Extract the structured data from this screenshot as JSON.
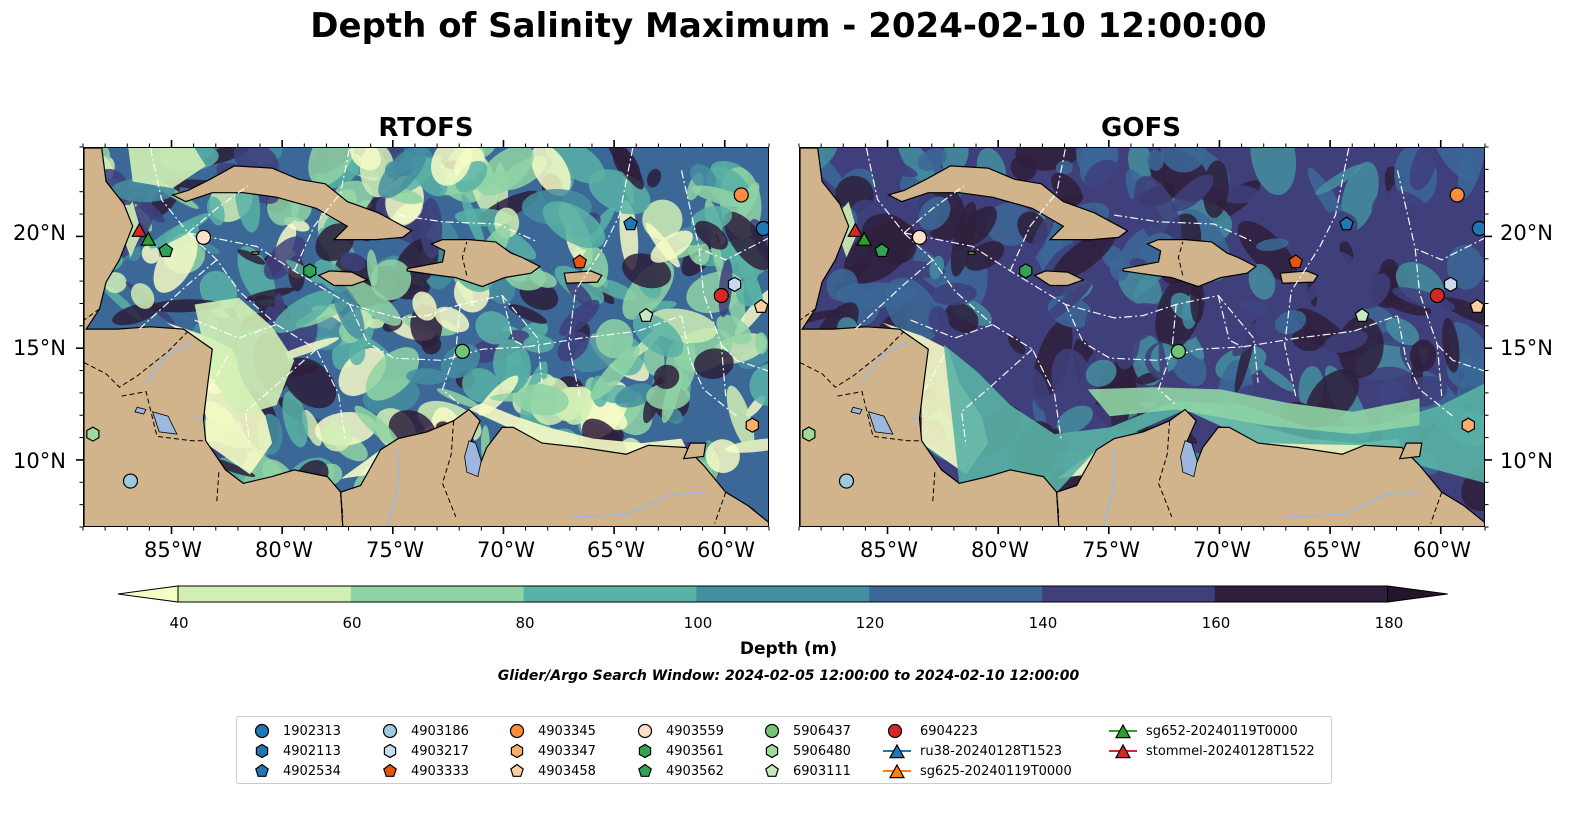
{
  "figure": {
    "title": "Depth of Salinity Maximum - 2024-02-10 12:00:00",
    "panels": [
      {
        "title": "RTOFS",
        "lat_labels": [
          "20°N",
          "15°N",
          "10°N"
        ],
        "lon_labels": [
          "85°W",
          "80°W",
          "75°W",
          "70°W",
          "65°W",
          "60°W"
        ]
      },
      {
        "title": "GOFS",
        "lat_labels": [
          "20°N",
          "15°N",
          "10°N"
        ],
        "lon_labels": [
          "85°W",
          "80°W",
          "75°W",
          "70°W",
          "65°W",
          "60°W"
        ]
      }
    ],
    "map_extent": {
      "lon": [
        -89,
        -58
      ],
      "lat": [
        7,
        24
      ]
    },
    "land_color": "#d2b48c",
    "lake_color": "#9cb8de"
  },
  "colorbar": {
    "label": "Depth (m)",
    "ticks": [
      "40",
      "60",
      "80",
      "100",
      "120",
      "140",
      "160",
      "180"
    ],
    "colors": [
      "#f7fcc5",
      "#d1efb5",
      "#8fd4a4",
      "#59b2a6",
      "#458ea0",
      "#3b6897",
      "#3e3f7b",
      "#2e1e3b",
      "#24152a"
    ],
    "extend": "both"
  },
  "search_window": "Glider/Argo Search Window: 2024-02-05 12:00:00 to 2024-02-10 12:00:00",
  "legend": {
    "columns": [
      [
        {
          "label": "1902313",
          "marker": "circle",
          "color": "#1f77b4"
        },
        {
          "label": "4902113",
          "marker": "hexagon",
          "color": "#1f77b4"
        },
        {
          "label": "4902534",
          "marker": "pentagon",
          "color": "#1f77b4"
        }
      ],
      [
        {
          "label": "4903186",
          "marker": "circle",
          "color": "#9ecae1"
        },
        {
          "label": "4903217",
          "marker": "hexagon",
          "color": "#c6dbef"
        },
        {
          "label": "4903333",
          "marker": "pentagon",
          "color": "#e6550d"
        }
      ],
      [
        {
          "label": "4903345",
          "marker": "circle",
          "color": "#fd8d3c"
        },
        {
          "label": "4903347",
          "marker": "hexagon",
          "color": "#fdae6b"
        },
        {
          "label": "4903458",
          "marker": "pentagon",
          "color": "#fdd0a2"
        }
      ],
      [
        {
          "label": "4903559",
          "marker": "circle",
          "color": "#fde0c5"
        },
        {
          "label": "4903561",
          "marker": "hexagon",
          "color": "#31a354"
        },
        {
          "label": "4903562",
          "marker": "pentagon",
          "color": "#31a354"
        }
      ],
      [
        {
          "label": "5906437",
          "marker": "circle",
          "color": "#74c476"
        },
        {
          "label": "5906480",
          "marker": "hexagon",
          "color": "#a1d99b"
        },
        {
          "label": "6903111",
          "marker": "pentagon",
          "color": "#c7e9c0"
        }
      ],
      [
        {
          "label": "6904223",
          "marker": "circle",
          "color": "#d62728"
        },
        {
          "label": "ru38-20240128T1523",
          "marker": "triangle-line",
          "color": "#1f77b4"
        },
        {
          "label": "sg625-20240119T0000",
          "marker": "triangle-line",
          "color": "#ff7f0e"
        }
      ],
      [
        {
          "label": "sg652-20240119T0000",
          "marker": "triangle-line",
          "color": "#2ca02c"
        },
        {
          "label": "stommel-20240128T1522",
          "marker": "triangle-line",
          "color": "#d62728"
        }
      ]
    ]
  },
  "platforms": [
    {
      "label": "stommel-20240128T1522",
      "marker": "triangle",
      "color": "#d62728",
      "lon": -86.5,
      "lat": 20.3
    },
    {
      "label": "sg652-20240119T0000",
      "marker": "triangle",
      "color": "#2ca02c",
      "lon": -86.1,
      "lat": 19.9
    },
    {
      "label": "4903562",
      "marker": "pentagon",
      "color": "#31a354",
      "lon": -85.3,
      "lat": 19.4
    },
    {
      "label": "4903559",
      "marker": "circle",
      "color": "#fde0c5",
      "lon": -83.6,
      "lat": 20.0
    },
    {
      "label": "4903561",
      "marker": "hexagon",
      "color": "#31a354",
      "lon": -78.8,
      "lat": 18.5
    },
    {
      "label": "5906437",
      "marker": "circle",
      "color": "#74c476",
      "lon": -71.9,
      "lat": 14.9
    },
    {
      "label": "4903333",
      "marker": "pentagon",
      "color": "#e6550d",
      "lon": -66.6,
      "lat": 18.9
    },
    {
      "label": "4902534",
      "marker": "pentagon",
      "color": "#1f77b4",
      "lon": -64.3,
      "lat": 20.6
    },
    {
      "label": "6903111",
      "marker": "pentagon",
      "color": "#c7e9c0",
      "lon": -63.6,
      "lat": 16.5
    },
    {
      "label": "4903345",
      "marker": "circle",
      "color": "#fd8d3c",
      "lon": -59.3,
      "lat": 21.9
    },
    {
      "label": "1902313",
      "marker": "circle",
      "color": "#1f77b4",
      "lon": -58.3,
      "lat": 20.4
    },
    {
      "label": "4903217",
      "marker": "hexagon",
      "color": "#c6dbef",
      "lon": -59.6,
      "lat": 17.9
    },
    {
      "label": "6904223",
      "marker": "circle",
      "color": "#d62728",
      "lon": -60.2,
      "lat": 17.4
    },
    {
      "label": "4903458",
      "marker": "pentagon",
      "color": "#fdd0a2",
      "lon": -58.4,
      "lat": 16.9
    },
    {
      "label": "4903347",
      "marker": "hexagon",
      "color": "#fdae6b",
      "lon": -58.8,
      "lat": 11.6
    },
    {
      "label": "5906480",
      "marker": "hexagon",
      "color": "#a1d99b",
      "lon": -88.6,
      "lat": 11.2
    },
    {
      "label": "4903186",
      "marker": "circle",
      "color": "#9ecae1",
      "lon": -86.9,
      "lat": 9.1
    }
  ]
}
